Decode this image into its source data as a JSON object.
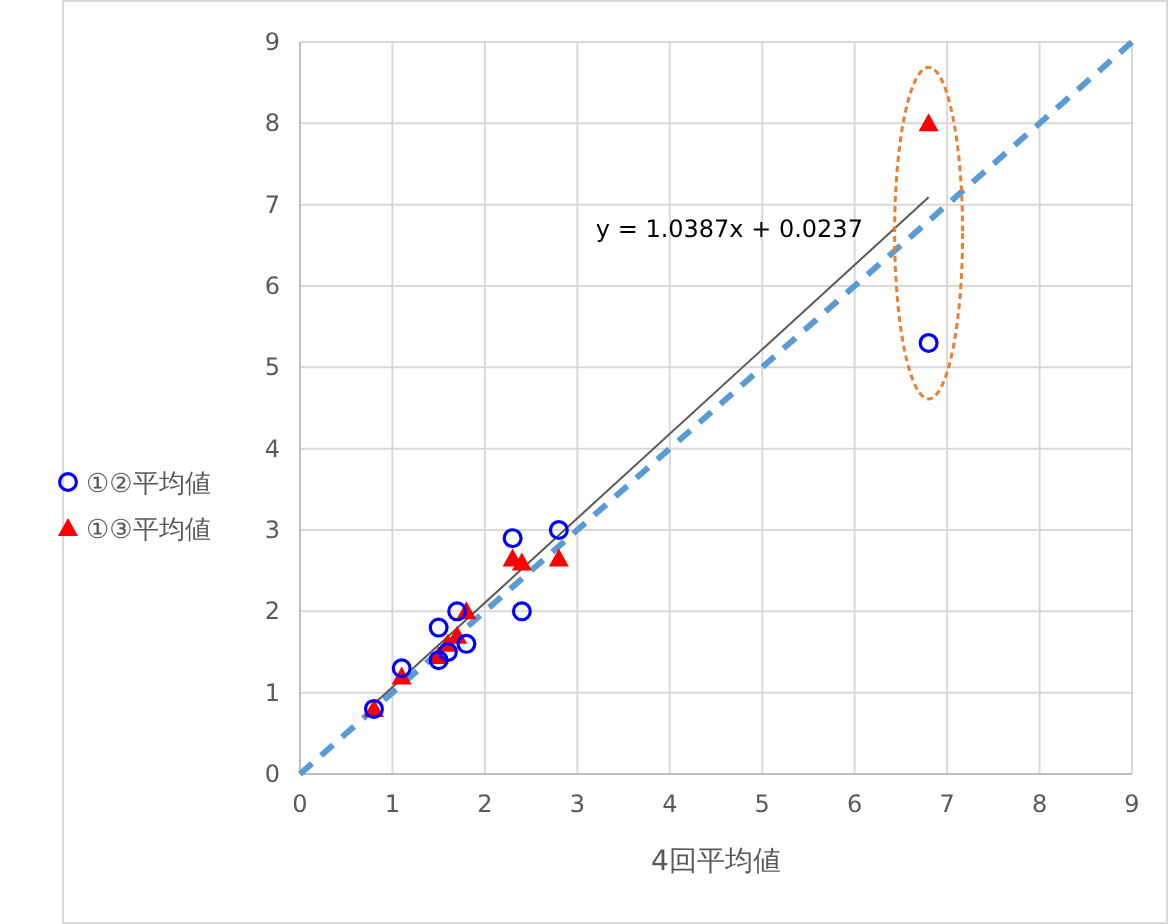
{
  "chart_data": {
    "type": "scatter",
    "xlabel": "4回平均値",
    "xlim": [
      0,
      9
    ],
    "ylim": [
      0,
      9
    ],
    "xticks": [
      0,
      1,
      2,
      3,
      4,
      5,
      6,
      7,
      8,
      9
    ],
    "yticks": [
      0,
      1,
      2,
      3,
      4,
      5,
      6,
      7,
      8,
      9
    ],
    "grid": true,
    "legend": "left",
    "annotations": [
      "y = 1.0387x + 0.0237"
    ],
    "series": [
      {
        "name": "①②平均値",
        "marker": "circle",
        "color": "#0000ff",
        "x": [
          0.8,
          1.1,
          1.5,
          1.5,
          1.6,
          1.7,
          1.8,
          2.3,
          2.4,
          2.8,
          6.8
        ],
        "values": [
          0.8,
          1.3,
          1.8,
          1.4,
          1.5,
          2.0,
          1.6,
          2.9,
          2.0,
          3.0,
          5.3
        ]
      },
      {
        "name": "①③平均値",
        "marker": "triangle",
        "color": "#ff0000",
        "x": [
          0.8,
          1.1,
          1.5,
          1.6,
          1.7,
          1.8,
          2.3,
          2.4,
          2.8,
          6.8
        ],
        "values": [
          0.8,
          1.2,
          1.45,
          1.6,
          1.7,
          2.0,
          2.65,
          2.6,
          2.65,
          8.0
        ]
      },
      {
        "type": "line",
        "color": "#595959",
        "line_style": "solid",
        "x": [
          0.8,
          6.8
        ],
        "values": [
          0.86,
          7.09
        ]
      },
      {
        "type": "line",
        "color": "#5b9bd5",
        "line_style": "dashed",
        "x": [
          0,
          9
        ],
        "values": [
          0,
          9
        ]
      }
    ]
  }
}
